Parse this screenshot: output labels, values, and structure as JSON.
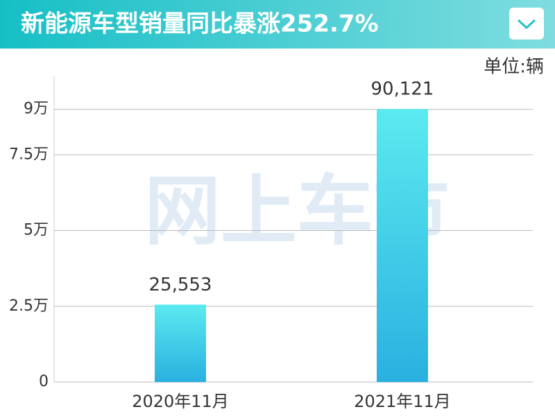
{
  "chart_data": {
    "type": "bar",
    "title": "新能源车型销量同比暴涨252.7%",
    "unit": "单位:辆",
    "watermark": "网上车市",
    "categories": [
      "2020年11月",
      "2021年11月"
    ],
    "values": [
      25553,
      90121
    ],
    "value_labels": [
      "25,553",
      "90,121"
    ],
    "color": "#2ab0e0",
    "ylim": [
      0,
      100000
    ],
    "yticks": [
      0,
      {
        "value": 25000,
        "label": "2.5万"
      },
      {
        "value": 50000,
        "label": "5万"
      },
      {
        "value": 75000,
        "label": "7.5万"
      },
      {
        "value": 90000,
        "label": "9万"
      }
    ],
    "grid": true
  }
}
